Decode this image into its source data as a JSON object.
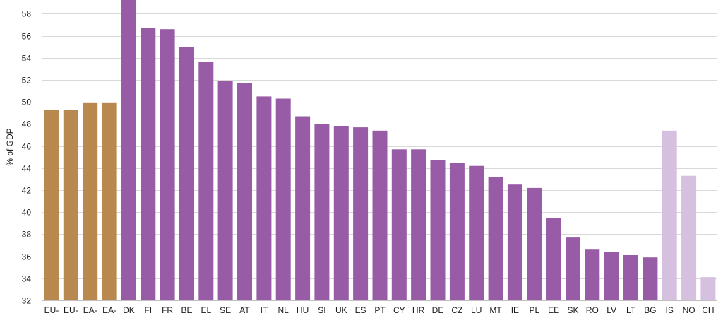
{
  "chart_data": {
    "type": "bar",
    "ylabel": "% of GDP",
    "ylim": [
      32,
      60
    ],
    "y_ticks": [
      32,
      34,
      36,
      38,
      40,
      42,
      44,
      46,
      48,
      50,
      52,
      54,
      56,
      58
    ],
    "grid": "horizontal",
    "categories": [
      "EU-",
      "EU-",
      "EA-",
      "EA-",
      "DK",
      "FI",
      "FR",
      "BE",
      "EL",
      "SE",
      "AT",
      "IT",
      "NL",
      "HU",
      "SI",
      "UK",
      "ES",
      "PT",
      "CY",
      "HR",
      "DE",
      "CZ",
      "LU",
      "MT",
      "IE",
      "PL",
      "EE",
      "SK",
      "RO",
      "LV",
      "LT",
      "BG",
      "IS",
      "NO",
      "CH"
    ],
    "values": [
      49.3,
      49.3,
      49.9,
      49.9,
      59.5,
      56.7,
      56.6,
      55.0,
      53.6,
      51.9,
      51.7,
      50.5,
      50.3,
      48.7,
      48.0,
      47.8,
      47.7,
      47.4,
      45.7,
      45.7,
      44.7,
      44.5,
      44.2,
      43.2,
      42.5,
      42.2,
      39.5,
      37.7,
      36.6,
      36.4,
      36.1,
      35.9,
      47.4,
      43.3,
      34.1
    ],
    "bar_colors": [
      "#b8884e",
      "#b8884e",
      "#b8884e",
      "#b8884e",
      "#985ca6",
      "#985ca6",
      "#985ca6",
      "#985ca6",
      "#985ca6",
      "#985ca6",
      "#985ca6",
      "#985ca6",
      "#985ca6",
      "#985ca6",
      "#985ca6",
      "#985ca6",
      "#985ca6",
      "#985ca6",
      "#985ca6",
      "#985ca6",
      "#985ca6",
      "#985ca6",
      "#985ca6",
      "#985ca6",
      "#985ca6",
      "#985ca6",
      "#985ca6",
      "#985ca6",
      "#985ca6",
      "#985ca6",
      "#985ca6",
      "#985ca6",
      "#d6c0e0",
      "#d6c0e0",
      "#d6c0e0"
    ],
    "colors": {
      "aggregate": "#b8884e",
      "member_state": "#985ca6",
      "non_member": "#d6c0e0",
      "grid": "#d9d9d9"
    }
  }
}
